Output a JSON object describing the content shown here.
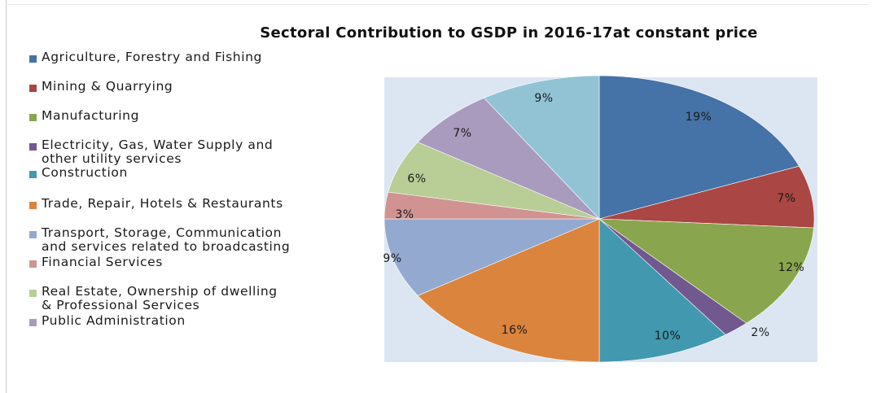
{
  "chart_data": {
    "type": "pie",
    "title": "Sectoral Contribution to GSDP in 2016-17at  constant price",
    "legend_position": "left",
    "background": "#dce6f2",
    "slices": [
      {
        "name": "Agriculture, Forestry and Fishing",
        "label": "19%",
        "value": 19,
        "color": "#4572a7"
      },
      {
        "name": "Mining & Quarrying",
        "label": "7%",
        "value": 7,
        "color": "#aa4643"
      },
      {
        "name": "Manufacturing",
        "label": "12%",
        "value": 12,
        "color": "#89a54e"
      },
      {
        "name": "Electricity, Gas, Water Supply and\nother utility services",
        "label": "2%",
        "value": 2,
        "color": "#71588f"
      },
      {
        "name": "Construction",
        "label": "10%",
        "value": 10,
        "color": "#4198af"
      },
      {
        "name": "Trade, Repair, Hotels & Restaurants",
        "label": "16%",
        "value": 16,
        "color": "#db843d"
      },
      {
        "name": "Transport, Storage, Communication\nand services related to broadcasting",
        "label": "9%",
        "value": 9,
        "color": "#93a9cf"
      },
      {
        "name": "Financial Services",
        "label": "3%",
        "value": 3,
        "color": "#d19392"
      },
      {
        "name": "Real Estate, Ownership of dwelling\n& Professional Services",
        "label": "6%",
        "value": 6,
        "color": "#b9cd96"
      },
      {
        "name": "Public Administration",
        "label": "7%",
        "value": 7,
        "color": "#a99bbd"
      },
      {
        "name": "",
        "label": "9%",
        "value": 9,
        "color": "#92c3d5"
      }
    ]
  }
}
